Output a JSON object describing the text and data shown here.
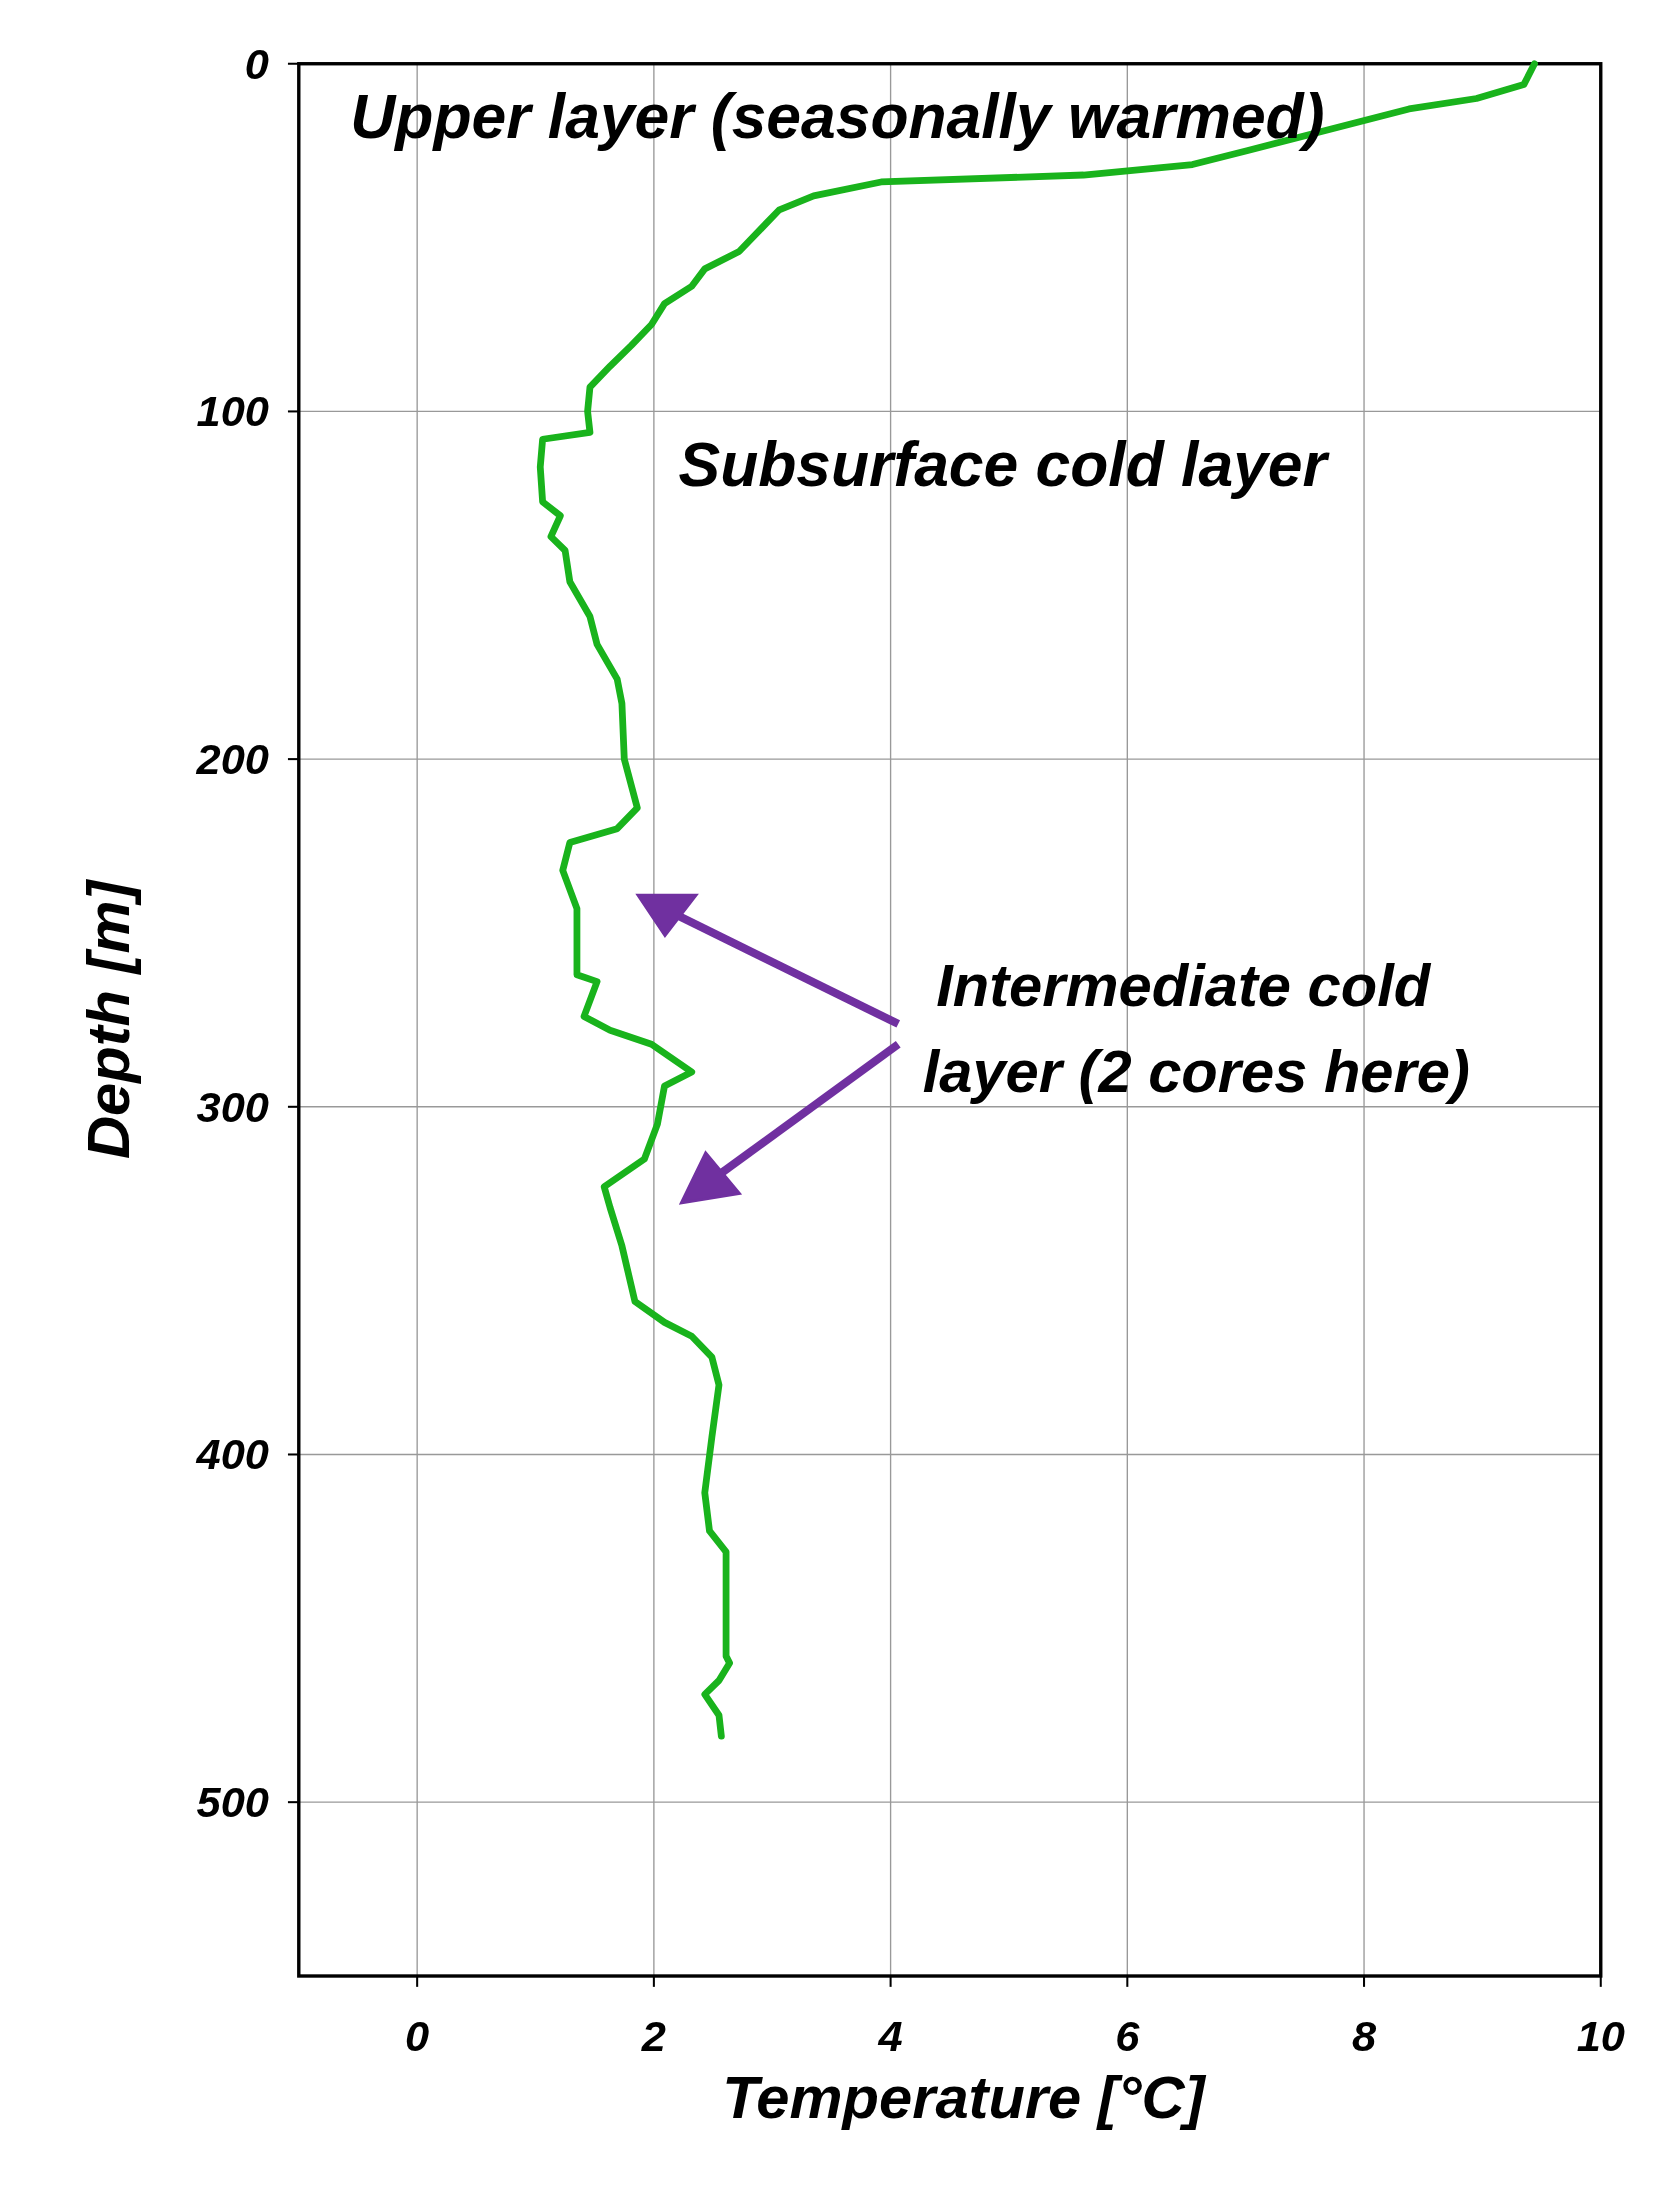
{
  "chart_data": {
    "type": "line",
    "xlabel": "Temperature [°C]",
    "ylabel": "Depth [m]",
    "xlim": [
      -1,
      10
    ],
    "xticks": [
      0,
      2,
      4,
      6,
      8,
      10
    ],
    "ylim": [
      550,
      0
    ],
    "yticks": [
      0,
      100,
      200,
      300,
      400,
      500
    ],
    "grid": true,
    "line_style": "solid",
    "annotations": [
      "Upper layer (seasonally warmed)",
      "Subsurface cold layer",
      "Intermediate cold layer (2 cores here)"
    ],
    "series": [
      {
        "color": "#19b31c",
        "x": [
          9.44,
          9.35,
          8.95,
          8.38,
          7.01,
          6.55,
          5.63,
          3.92,
          3.35,
          3.06,
          2.89,
          2.72,
          2.43,
          2.32,
          2.09,
          1.98,
          1.81,
          1.63,
          1.46,
          1.44,
          1.46,
          1.06,
          1.04,
          1.06,
          1.21,
          1.13,
          1.25,
          1.29,
          1.46,
          1.52,
          1.69,
          1.73,
          1.75,
          1.86,
          1.69,
          1.29,
          1.23,
          1.35,
          1.35,
          1.52,
          1.41,
          1.63,
          1.98,
          2.32,
          2.09,
          2.03,
          1.92,
          1.58,
          1.63,
          1.73,
          1.84,
          2.09,
          2.32,
          2.49,
          2.55,
          2.49,
          2.43,
          2.47,
          2.61,
          2.61,
          2.64,
          2.55,
          2.43,
          2.55,
          2.57
        ],
        "values": [
          0,
          6,
          10,
          13,
          25,
          29,
          32,
          34,
          38,
          42,
          48,
          54,
          59,
          64,
          69,
          75,
          81,
          87,
          93,
          100,
          106,
          108,
          116,
          126,
          130,
          136,
          140,
          149,
          159,
          167,
          177,
          184,
          200,
          214,
          220,
          224,
          232,
          243,
          262,
          264,
          274,
          278,
          282,
          290,
          294,
          305,
          315,
          323,
          329,
          340,
          356,
          362,
          366,
          372,
          380,
          395,
          411,
          422,
          428,
          458,
          460,
          465,
          469,
          475,
          481
        ]
      }
    ]
  }
}
